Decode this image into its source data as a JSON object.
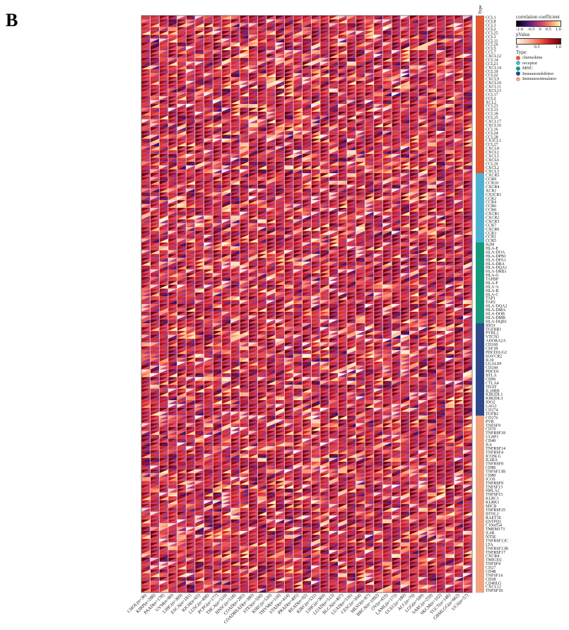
{
  "panel_label": "B",
  "legend": {
    "corr_title": "correlation coefficient",
    "corr_ticks": [
      "-1.0",
      "-0.5",
      "0",
      "0.5",
      "1.0"
    ],
    "p_title": "pValue",
    "p_ticks": [
      "0",
      "0.5",
      "1.0"
    ],
    "type_title": "Type",
    "types": [
      {
        "label": "chemokine",
        "color": "#e05a33"
      },
      {
        "label": "receptor",
        "color": "#4fb3cf"
      },
      {
        "label": "MHC",
        "color": "#169a7d"
      },
      {
        "label": "Immunoinhibitor",
        "color": "#2f4a8a"
      },
      {
        "label": "Immunostimulator",
        "color": "#f0a582"
      }
    ]
  },
  "chart_data": {
    "type": "heatmap",
    "annotation_title": "Type",
    "columns": [
      "CHOL(n=36)",
      "KIRP(n=288)",
      "PAAD(n=178)",
      "UVM(n=80)",
      "LIHC(n=369)",
      "ESCA(n=181)",
      "KICH(n=65)",
      "LUSC(n=498)",
      "PCPG(n=177)",
      "THCA(n=510)",
      "HNSC(n=518)",
      "COAD(n=285)",
      "COADREAD(n=380)",
      "STES(n=590)",
      "KIRC(n=530)",
      "THYM(n=118)",
      "STAD(n=414)",
      "PRAD(n=495)",
      "READ(n=92)",
      "KIRC(n=531)",
      "LIHC(n=369)",
      "LUAD(n=513)",
      "BLCA(n=407)",
      "LUAD(n=516)",
      "CESC(n=304)",
      "MESO(n=87)",
      "BRCA(n=1092)",
      "OV(n=419)",
      "LAML(n=173)",
      "UCEC(n=180)",
      "ACC(n=79)",
      "LGG(n=509)",
      "SARC(n=259)",
      "SKCM(n=102)",
      "TGCT(n=148)",
      "GBMLGG(n=662)",
      "UCS(n=57)"
    ],
    "rows": [
      {
        "name": "CCL1",
        "type": "chemokine"
      },
      {
        "name": "CCL8",
        "type": "chemokine"
      },
      {
        "name": "CCL3",
        "type": "chemokine"
      },
      {
        "name": "CCL2",
        "type": "chemokine"
      },
      {
        "name": "CCL25",
        "type": "chemokine"
      },
      {
        "name": "CCL1",
        "type": "chemokine"
      },
      {
        "name": "CCL11",
        "type": "chemokine"
      },
      {
        "name": "CCL26",
        "type": "chemokine"
      },
      {
        "name": "CCL5",
        "type": "chemokine"
      },
      {
        "name": "CCL7",
        "type": "chemokine"
      },
      {
        "name": "CXCL12",
        "type": "chemokine"
      },
      {
        "name": "CCL14",
        "type": "chemokine"
      },
      {
        "name": "CCL21",
        "type": "chemokine"
      },
      {
        "name": "CXCL14",
        "type": "chemokine"
      },
      {
        "name": "CCL19",
        "type": "chemokine"
      },
      {
        "name": "CCL22",
        "type": "chemokine"
      },
      {
        "name": "CXCL9",
        "type": "chemokine"
      },
      {
        "name": "CXCL10",
        "type": "chemokine"
      },
      {
        "name": "CXCL11",
        "type": "chemokine"
      },
      {
        "name": "CXCL13",
        "type": "chemokine"
      },
      {
        "name": "CCL17",
        "type": "chemokine"
      },
      {
        "name": "CCL2",
        "type": "chemokine"
      },
      {
        "name": "XCL2",
        "type": "chemokine"
      },
      {
        "name": "CCL23",
        "type": "chemokine"
      },
      {
        "name": "CCL13",
        "type": "chemokine"
      },
      {
        "name": "CCL18",
        "type": "chemokine"
      },
      {
        "name": "CCL15",
        "type": "chemokine"
      },
      {
        "name": "CXCL17",
        "type": "chemokine"
      },
      {
        "name": "CXCL16",
        "type": "chemokine"
      },
      {
        "name": "CCL16",
        "type": "chemokine"
      },
      {
        "name": "CCL24",
        "type": "chemokine"
      },
      {
        "name": "CCL28",
        "type": "chemokine"
      },
      {
        "name": "CX3CL1",
        "type": "chemokine"
      },
      {
        "name": "CCL27",
        "type": "chemokine"
      },
      {
        "name": "CXCL8",
        "type": "chemokine"
      },
      {
        "name": "CXCL1",
        "type": "chemokine"
      },
      {
        "name": "CXCL5",
        "type": "chemokine"
      },
      {
        "name": "CXCL6",
        "type": "chemokine"
      },
      {
        "name": "CCL20",
        "type": "chemokine"
      },
      {
        "name": "CXCL2",
        "type": "chemokine"
      },
      {
        "name": "CXCL3",
        "type": "chemokine"
      },
      {
        "name": "CXCR5",
        "type": "receptor"
      },
      {
        "name": "CCR9",
        "type": "receptor"
      },
      {
        "name": "CCR10",
        "type": "receptor"
      },
      {
        "name": "CXCR4",
        "type": "receptor"
      },
      {
        "name": "XCR1",
        "type": "receptor"
      },
      {
        "name": "CX3CR1",
        "type": "receptor"
      },
      {
        "name": "CCR2",
        "type": "receptor"
      },
      {
        "name": "CCR4",
        "type": "receptor"
      },
      {
        "name": "CCR6",
        "type": "receptor"
      },
      {
        "name": "CCR8",
        "type": "receptor"
      },
      {
        "name": "CXCR1",
        "type": "receptor"
      },
      {
        "name": "CXCR2",
        "type": "receptor"
      },
      {
        "name": "CXCR3",
        "type": "receptor"
      },
      {
        "name": "CCR7",
        "type": "receptor"
      },
      {
        "name": "CXCR6",
        "type": "receptor"
      },
      {
        "name": "CCR3",
        "type": "receptor"
      },
      {
        "name": "CCR1",
        "type": "receptor"
      },
      {
        "name": "CCR5",
        "type": "receptor"
      },
      {
        "name": "B2M",
        "type": "MHC"
      },
      {
        "name": "HLA-E",
        "type": "MHC"
      },
      {
        "name": "HLA-DOA",
        "type": "MHC"
      },
      {
        "name": "HLA-DPB1",
        "type": "MHC"
      },
      {
        "name": "HLA-DPA1",
        "type": "MHC"
      },
      {
        "name": "HLA-DRA",
        "type": "MHC"
      },
      {
        "name": "HLA-DQA1",
        "type": "MHC"
      },
      {
        "name": "HLA-DRB1",
        "type": "MHC"
      },
      {
        "name": "HLA-G",
        "type": "MHC"
      },
      {
        "name": "TAPBP",
        "type": "MHC"
      },
      {
        "name": "HLA-F",
        "type": "MHC"
      },
      {
        "name": "HLA-A",
        "type": "MHC"
      },
      {
        "name": "HLA-B",
        "type": "MHC"
      },
      {
        "name": "HLA-C",
        "type": "MHC"
      },
      {
        "name": "TAP1",
        "type": "MHC"
      },
      {
        "name": "TAP2",
        "type": "MHC"
      },
      {
        "name": "HLA-DQA2",
        "type": "MHC"
      },
      {
        "name": "HLA-DMA",
        "type": "MHC"
      },
      {
        "name": "HLA-DOB",
        "type": "MHC"
      },
      {
        "name": "HLA-DMB",
        "type": "MHC"
      },
      {
        "name": "HLA-DQB1",
        "type": "MHC"
      },
      {
        "name": "IDO1",
        "type": "Immunoinhibitor"
      },
      {
        "name": "TGFBR1",
        "type": "Immunoinhibitor"
      },
      {
        "name": "PVRL2",
        "type": "Immunoinhibitor"
      },
      {
        "name": "VTCN1",
        "type": "Immunoinhibitor"
      },
      {
        "name": "ADORA2A",
        "type": "Immunoinhibitor"
      },
      {
        "name": "CD160",
        "type": "Immunoinhibitor"
      },
      {
        "name": "CSF1R",
        "type": "Immunoinhibitor"
      },
      {
        "name": "PDCD1LG2",
        "type": "Immunoinhibitor"
      },
      {
        "name": "HAVCR2",
        "type": "Immunoinhibitor"
      },
      {
        "name": "IL10",
        "type": "Immunoinhibitor"
      },
      {
        "name": "LGALS9",
        "type": "Immunoinhibitor"
      },
      {
        "name": "CD244",
        "type": "Immunoinhibitor"
      },
      {
        "name": "PDCD1",
        "type": "Immunoinhibitor"
      },
      {
        "name": "BTLA",
        "type": "Immunoinhibitor"
      },
      {
        "name": "CD96",
        "type": "Immunoinhibitor"
      },
      {
        "name": "CTLA4",
        "type": "Immunoinhibitor"
      },
      {
        "name": "TIGIT",
        "type": "Immunoinhibitor"
      },
      {
        "name": "IL10RB",
        "type": "Immunoinhibitor"
      },
      {
        "name": "KIR2DL1",
        "type": "Immunoinhibitor"
      },
      {
        "name": "KIR2DL3",
        "type": "Immunoinhibitor"
      },
      {
        "name": "IDO2",
        "type": "Immunoinhibitor"
      },
      {
        "name": "LAG3",
        "type": "Immunoinhibitor"
      },
      {
        "name": "CD274",
        "type": "Immunoinhibitor"
      },
      {
        "name": "TGFB1",
        "type": "Immunoinhibitor"
      },
      {
        "name": "CD276",
        "type": "Immunostimulator"
      },
      {
        "name": "PVR",
        "type": "Immunostimulator"
      },
      {
        "name": "TNFSF9",
        "type": "Immunostimulator"
      },
      {
        "name": "CD70",
        "type": "Immunostimulator"
      },
      {
        "name": "TNFRSF18",
        "type": "Immunostimulator"
      },
      {
        "name": "ULBP1",
        "type": "Immunostimulator"
      },
      {
        "name": "CD40",
        "type": "Immunostimulator"
      },
      {
        "name": "IL6",
        "type": "Immunostimulator"
      },
      {
        "name": "TNFRSF14",
        "type": "Immunostimulator"
      },
      {
        "name": "TNFRSF4",
        "type": "Immunostimulator"
      },
      {
        "name": "ICOSLG",
        "type": "Immunostimulator"
      },
      {
        "name": "IL2RA",
        "type": "Immunostimulator"
      },
      {
        "name": "TNFRSF8",
        "type": "Immunostimulator"
      },
      {
        "name": "CD86",
        "type": "Immunostimulator"
      },
      {
        "name": "TNFSF13B",
        "type": "Immunostimulator"
      },
      {
        "name": "CD80",
        "type": "Immunostimulator"
      },
      {
        "name": "ICOS",
        "type": "Immunostimulator"
      },
      {
        "name": "TNFRSF9",
        "type": "Immunostimulator"
      },
      {
        "name": "TNFSF13",
        "type": "Immunostimulator"
      },
      {
        "name": "HHLA2",
        "type": "Immunostimulator"
      },
      {
        "name": "TNFSF15",
        "type": "Immunostimulator"
      },
      {
        "name": "KLRC1",
        "type": "Immunostimulator"
      },
      {
        "name": "KLRK1",
        "type": "Immunostimulator"
      },
      {
        "name": "MICB",
        "type": "Immunostimulator"
      },
      {
        "name": "TNFRSF25",
        "type": "Immunostimulator"
      },
      {
        "name": "BTNL2",
        "type": "Immunostimulator"
      },
      {
        "name": "RAET1E",
        "type": "Immunostimulator"
      },
      {
        "name": "ENTPD1",
        "type": "Immunostimulator"
      },
      {
        "name": "C10orf54",
        "type": "Immunostimulator"
      },
      {
        "name": "TMEM173",
        "type": "Immunostimulator"
      },
      {
        "name": "IL6R",
        "type": "Immunostimulator"
      },
      {
        "name": "NT5E",
        "type": "Immunostimulator"
      },
      {
        "name": "TNFRSF13C",
        "type": "Immunostimulator"
      },
      {
        "name": "LTA",
        "type": "Immunostimulator"
      },
      {
        "name": "TNFRSF13B",
        "type": "Immunostimulator"
      },
      {
        "name": "TNFRSF17",
        "type": "Immunostimulator"
      },
      {
        "name": "CXCR4",
        "type": "Immunostimulator"
      },
      {
        "name": "TMIGD2",
        "type": "Immunostimulator"
      },
      {
        "name": "TNFSF4",
        "type": "Immunostimulator"
      },
      {
        "name": "CD27",
        "type": "Immunostimulator"
      },
      {
        "name": "CD48",
        "type": "Immunostimulator"
      },
      {
        "name": "TNFSF14",
        "type": "Immunostimulator"
      },
      {
        "name": "CD28",
        "type": "Immunostimulator"
      },
      {
        "name": "CD40LG",
        "type": "Immunostimulator"
      },
      {
        "name": "CXCL12",
        "type": "Immunostimulator"
      },
      {
        "name": "TNFSF18",
        "type": "Immunostimulator"
      }
    ],
    "value_encoding": {
      "upper_left_triangle": "pValue",
      "lower_right_triangle": "correlation coefficient",
      "corr_range": [
        -1,
        1
      ],
      "p_range": [
        0,
        1
      ]
    },
    "note_values": "Cell values approximated: most correlations are near 0 to slightly negative (dark) with most p-values low (red)."
  }
}
